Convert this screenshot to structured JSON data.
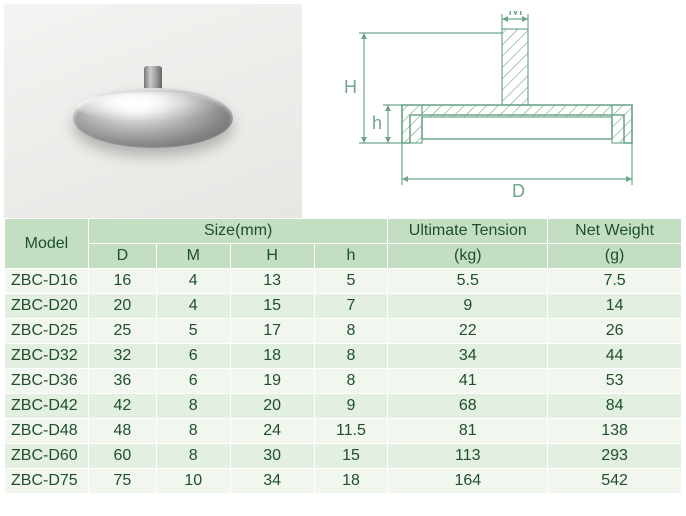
{
  "diagram": {
    "labels": {
      "M": "M",
      "H": "H",
      "h": "h",
      "D": "D"
    },
    "colors": {
      "line": "#6fa68a"
    }
  },
  "table": {
    "headers": {
      "model": "Model",
      "size_group": "Size(mm)",
      "D": "D",
      "M": "M",
      "Hcap": "H",
      "h": "h",
      "ut_top": "Ultimate Tension",
      "ut_sub": "(kg)",
      "nw_top": "Net Weight",
      "nw_sub": "(g)"
    },
    "rows": [
      {
        "model": "ZBC-D16",
        "D": "16",
        "M": "4",
        "H": "13",
        "h": "5",
        "ut": "5.5",
        "nw": "7.5"
      },
      {
        "model": "ZBC-D20",
        "D": "20",
        "M": "4",
        "H": "15",
        "h": "7",
        "ut": "9",
        "nw": "14"
      },
      {
        "model": "ZBC-D25",
        "D": "25",
        "M": "5",
        "H": "17",
        "h": "8",
        "ut": "22",
        "nw": "26"
      },
      {
        "model": "ZBC-D32",
        "D": "32",
        "M": "6",
        "H": "18",
        "h": "8",
        "ut": "34",
        "nw": "44"
      },
      {
        "model": "ZBC-D36",
        "D": "36",
        "M": "6",
        "H": "19",
        "h": "8",
        "ut": "41",
        "nw": "53"
      },
      {
        "model": "ZBC-D42",
        "D": "42",
        "M": "8",
        "H": "20",
        "h": "9",
        "ut": "68",
        "nw": "84"
      },
      {
        "model": "ZBC-D48",
        "D": "48",
        "M": "8",
        "H": "24",
        "h": "11.5",
        "ut": "81",
        "nw": "138"
      },
      {
        "model": "ZBC-D60",
        "D": "60",
        "M": "8",
        "H": "30",
        "h": "15",
        "ut": "113",
        "nw": "293"
      },
      {
        "model": "ZBC-D75",
        "D": "75",
        "M": "10",
        "H": "34",
        "h": "18",
        "ut": "164",
        "nw": "542"
      }
    ]
  }
}
